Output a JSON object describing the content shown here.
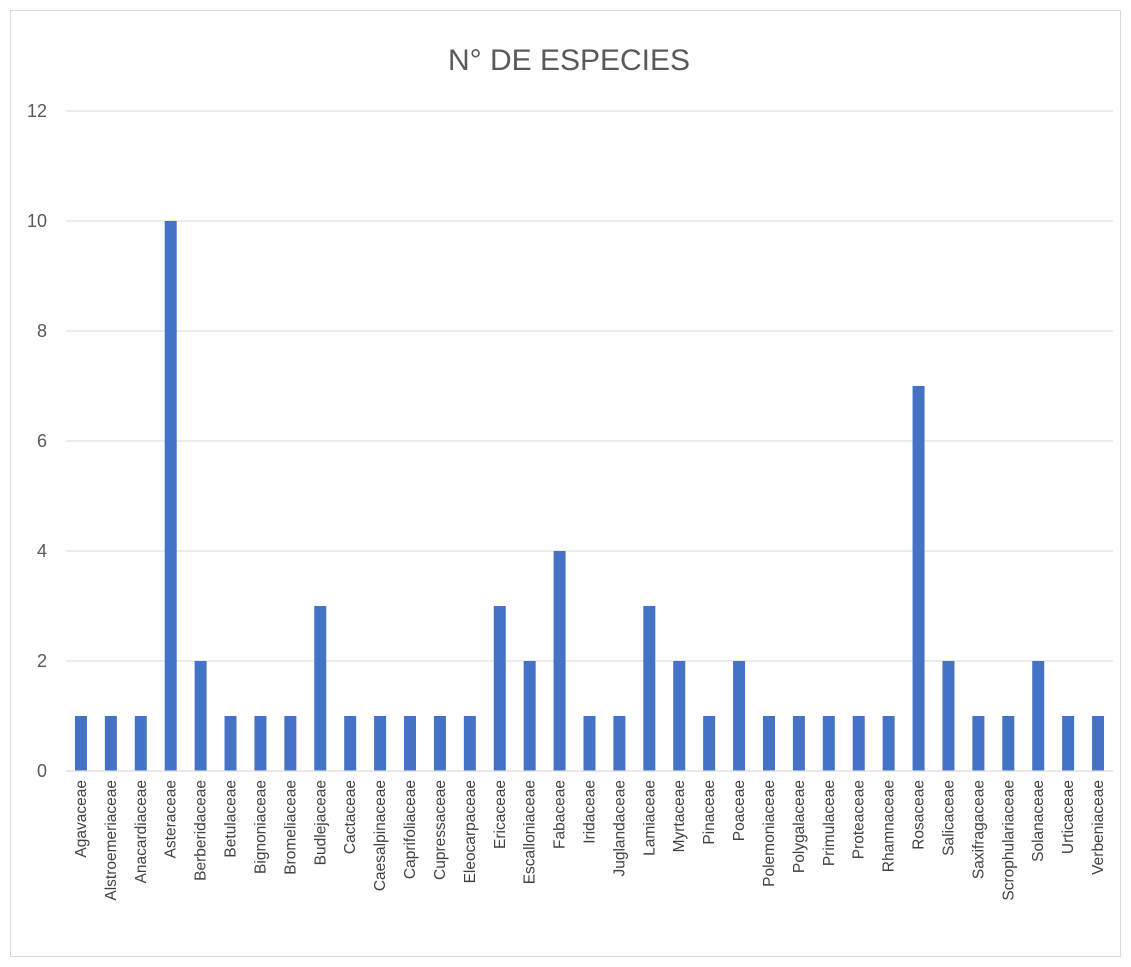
{
  "chart_data": {
    "type": "bar",
    "title": "N° DE ESPECIES",
    "xlabel": "",
    "ylabel": "",
    "ylim": [
      0,
      12
    ],
    "yticks": [
      0,
      2,
      4,
      6,
      8,
      10,
      12
    ],
    "grid": true,
    "legend": "none",
    "bar_color": "#4472C4",
    "categories": [
      "Agavaceae",
      "Alstroemeriaceae",
      "Anacardiaceae",
      "Asteraceae",
      "Berberidaceae",
      "Betulaceae",
      "Bignoniaceae",
      "Bromeliaceae",
      "Budlejaceae",
      "Cactaceae",
      "Caesalpinaceae",
      "Caprifoliaceae",
      "Cupressaceae",
      "Eleocarpaceae",
      "Ericaceae",
      "Escalloniaceae",
      "Fabaceae",
      "Iridaceae",
      "Juglandaceae",
      "Lamiaceae",
      "Myrtaceae",
      "Pinaceae",
      "Poaceae",
      "Polemoniaceae",
      "Polygalaceae",
      "Primulaceae",
      "Proteaceae",
      "Rhamnaceae",
      "Rosaceae",
      "Salicaceae",
      "Saxifragaceae",
      "Scrophulariaceae",
      "Solanaceae",
      "Urticaceae",
      "Verbeniaceae"
    ],
    "values": [
      1,
      1,
      1,
      10,
      2,
      1,
      1,
      1,
      3,
      1,
      1,
      1,
      1,
      1,
      3,
      2,
      4,
      1,
      1,
      3,
      2,
      1,
      2,
      1,
      1,
      1,
      1,
      1,
      7,
      2,
      1,
      1,
      2,
      1,
      1
    ]
  }
}
